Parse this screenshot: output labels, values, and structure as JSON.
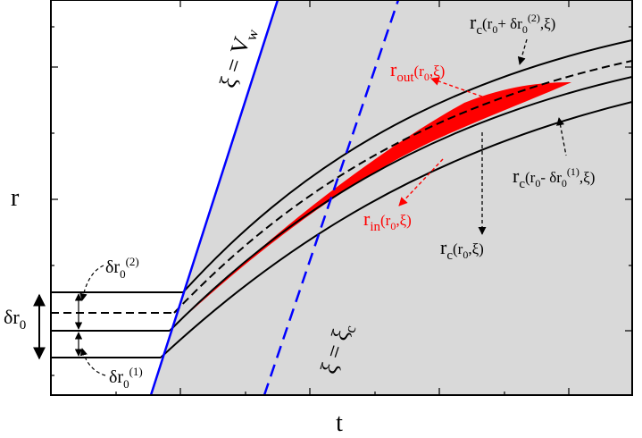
{
  "axes": {
    "xlabel": "t",
    "ylabel": "r"
  },
  "colors": {
    "region_fill": "#d9d9d9",
    "wall_line": "#0000ff",
    "band_fill": "#ff0000",
    "curve": "#000000",
    "red_label": "#ff0000",
    "black_label": "#000000"
  },
  "labels": {
    "wall_xi": "ξ = V",
    "wall_sub": "w",
    "xi_c": "ξ = ξ",
    "xi_c_sub": "c",
    "r_out": {
      "main": "r",
      "sub": "out",
      "tail_open": "(r",
      "tail_sub": "0",
      "tail_close": ",ξ)"
    },
    "r_in": {
      "main": "r",
      "sub": "in",
      "tail_open": "(r",
      "tail_sub": "0",
      "tail_close": ",ξ)"
    },
    "rc_plus": {
      "main": "r",
      "sub": "c",
      "a": "(r",
      "a_sub": "0",
      "b": "+ δr",
      "b_sub": "0",
      "b_sup": "(2)",
      "c": ",ξ)"
    },
    "rc_minus": {
      "main": "r",
      "sub": "c",
      "a": "(r",
      "a_sub": "0",
      "b": "- δr",
      "b_sub": "0",
      "b_sup": "(1)",
      "c": ",ξ)"
    },
    "rc_mid": {
      "main": "r",
      "sub": "c",
      "a": "(r",
      "a_sub": "0",
      "c": ",ξ)"
    },
    "dr0": {
      "main": "δr",
      "sub": "0"
    },
    "dr02": {
      "main": "δr",
      "sub": "0",
      "sup": "(2)"
    },
    "dr01": {
      "main": "δr",
      "sub": "0",
      "sup": "(1)"
    }
  }
}
